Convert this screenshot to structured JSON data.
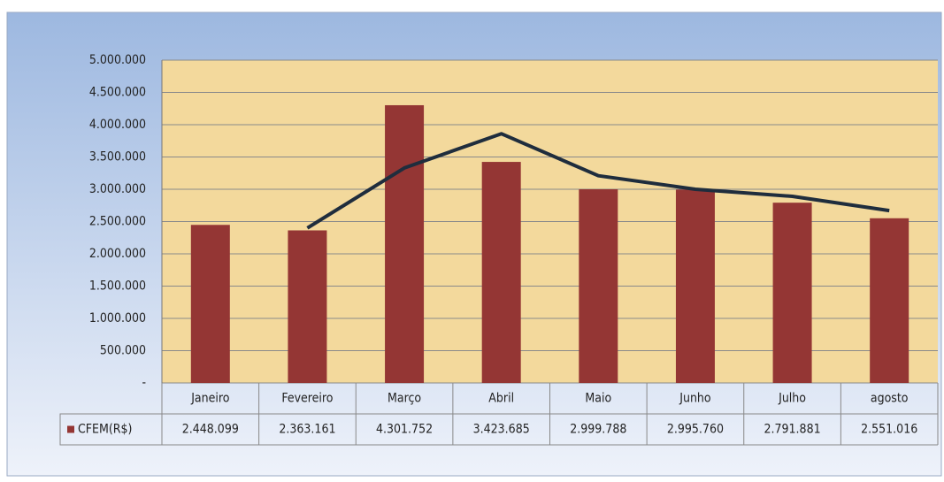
{
  "chart_data": {
    "type": "bar",
    "categories": [
      "Janeiro",
      "Fevereiro",
      "Março",
      "Abril",
      "Maio",
      "Junho",
      "Julho",
      "agosto"
    ],
    "series": [
      {
        "name": "CFEM(R$)",
        "color": "#943634",
        "type": "bar",
        "values": [
          2448099,
          2363161,
          4301752,
          3423685,
          2999788,
          2995760,
          2791881,
          2551016
        ],
        "value_labels": [
          "2.448.099",
          "2.363.161",
          "4.301.752",
          "3.423.685",
          "2.999.788",
          "2.995.760",
          "2.791.881",
          "2.551.016"
        ]
      },
      {
        "color": "#1f2d3d",
        "type": "line",
        "values": [
          null,
          2400000,
          3330000,
          3860000,
          3210000,
          3000000,
          2890000,
          2670000
        ]
      }
    ],
    "ylim": [
      0,
      5000000
    ],
    "yticks": [
      {
        "value": 0,
        "label": "-"
      },
      {
        "value": 500000,
        "label": "500.000"
      },
      {
        "value": 1000000,
        "label": "1.000.000"
      },
      {
        "value": 1500000,
        "label": "1.500.000"
      },
      {
        "value": 2000000,
        "label": "2.000.000"
      },
      {
        "value": 2500000,
        "label": "2.500.000"
      },
      {
        "value": 3000000,
        "label": "3.000.000"
      },
      {
        "value": 3500000,
        "label": "3.500.000"
      },
      {
        "value": 4000000,
        "label": "4.000.000"
      },
      {
        "value": 4500000,
        "label": "4.500.000"
      },
      {
        "value": 5000000,
        "label": "5.000.000"
      }
    ],
    "grid": true,
    "plot_background": "#f3d99c"
  }
}
